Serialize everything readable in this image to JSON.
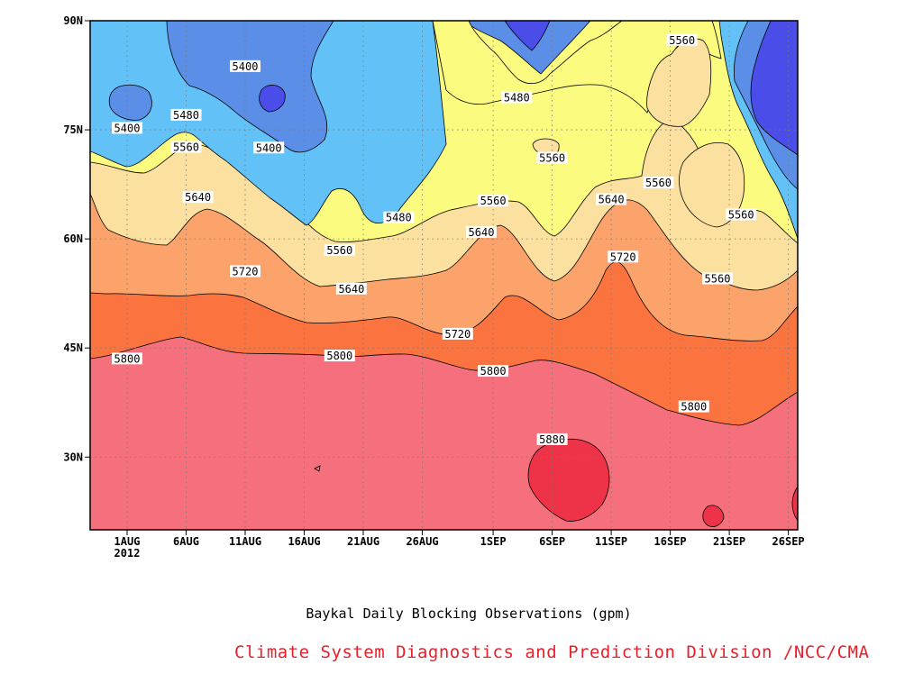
{
  "chart_data": {
    "type": "heatmap",
    "subtype": "filled-contour (time-latitude section)",
    "title": "Baykal Daily Blocking Observations (gpm)",
    "x_ticks": [
      "1AUG",
      "6AUG",
      "11AUG",
      "16AUG",
      "21AUG",
      "26AUG",
      "1SEP",
      "6SEP",
      "11SEP",
      "16SEP",
      "21SEP",
      "26SEP"
    ],
    "x_year_label": "2012",
    "y_ticks": [
      "30N",
      "45N",
      "60N",
      "75N",
      "90N"
    ],
    "ylim": [
      20,
      90
    ],
    "contour_levels": [
      5400,
      5480,
      5560,
      5640,
      5720,
      5800,
      5880
    ],
    "colors": {
      "below_5400": "#4b4de8",
      "5400_5480_dark": "#5b8ee6",
      "5400_5480": "#62c2f8",
      "5480_5560": "#fbfb80",
      "5560_5640": "#fbe0a0",
      "5640_5720": "#fba36a",
      "5720_5800": "#fb7440",
      "5800_5880": "#f56f7c",
      "above_5880": "#ee3349"
    },
    "contour_labels": [
      {
        "value": "5400",
        "date": "11AUG",
        "lat": 83.7
      },
      {
        "value": "5400",
        "date": "1AUG",
        "lat": 75.2
      },
      {
        "value": "5400",
        "date": "13AUG",
        "lat": 72.5
      },
      {
        "value": "5480",
        "date": "6AUG",
        "lat": 77.0
      },
      {
        "value": "5480",
        "date": "3SEP",
        "lat": 79.4
      },
      {
        "value": "5480",
        "date": "24AUG",
        "lat": 62.9
      },
      {
        "value": "5560",
        "date": "17SEP",
        "lat": 87.3
      },
      {
        "value": "5560",
        "date": "6AUG",
        "lat": 72.6
      },
      {
        "value": "5560",
        "date": "6SEP",
        "lat": 71.1
      },
      {
        "value": "5560",
        "date": "1SEP",
        "lat": 65.2
      },
      {
        "value": "5560",
        "date": "15SEP",
        "lat": 67.7
      },
      {
        "value": "5560",
        "date": "22SEP",
        "lat": 63.3
      },
      {
        "value": "5560",
        "date": "19AUG",
        "lat": 58.4
      },
      {
        "value": "5560",
        "date": "20SEP",
        "lat": 54.5
      },
      {
        "value": "5640",
        "date": "7AUG",
        "lat": 65.7
      },
      {
        "value": "5640",
        "date": "11SEP",
        "lat": 65.4
      },
      {
        "value": "5640",
        "date": "31AUG",
        "lat": 60.9
      },
      {
        "value": "5640",
        "date": "20AUG",
        "lat": 53.1
      },
      {
        "value": "5720",
        "date": "11AUG",
        "lat": 55.5
      },
      {
        "value": "5720",
        "date": "12SEP",
        "lat": 57.5
      },
      {
        "value": "5720",
        "date": "29AUG",
        "lat": 46.9
      },
      {
        "value": "5800",
        "date": "1AUG",
        "lat": 43.5
      },
      {
        "value": "5800",
        "date": "19AUG",
        "lat": 43.9
      },
      {
        "value": "5800",
        "date": "1SEP",
        "lat": 41.8
      },
      {
        "value": "5800",
        "date": "18SEP",
        "lat": 36.9
      },
      {
        "value": "5880",
        "date": "6SEP",
        "lat": 32.4
      }
    ]
  },
  "credit": "Climate System Diagnostics and Prediction Division /NCC/CMA"
}
